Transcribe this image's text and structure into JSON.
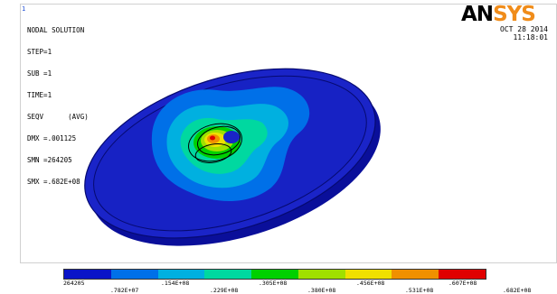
{
  "window": {
    "number": "1"
  },
  "brand": {
    "logo_part1": "AN",
    "logo_part2": "SYS",
    "color_part1": "#000000",
    "color_part2": "#f08c1a"
  },
  "header": {
    "title": "NODAL SOLUTION",
    "lines": [
      "STEP=1",
      "SUB =1",
      "TIME=1",
      "SEQV      (AVG)",
      "DMX =.001125",
      "SMN =264205",
      "SMX =.682E+08"
    ]
  },
  "timestamp": {
    "date": "OCT 28 2014",
    "time": "11:18:01"
  },
  "legend": {
    "colors": [
      "#0a14c8",
      "#0070e8",
      "#00b0e0",
      "#00d8a0",
      "#00d000",
      "#a0e000",
      "#f0e000",
      "#f09000",
      "#e00000"
    ],
    "labels_top": [
      "264205",
      ".154E+08",
      ".305E+08",
      ".456E+08",
      ".607E+08"
    ],
    "labels_bottom": [
      ".782E+07",
      ".229E+08",
      ".380E+08",
      ".531E+08",
      ".682E+08"
    ]
  },
  "colors": {
    "model_dark": "#0a14b4",
    "model_rim": "#1e28d0",
    "background": "#ffffff"
  }
}
